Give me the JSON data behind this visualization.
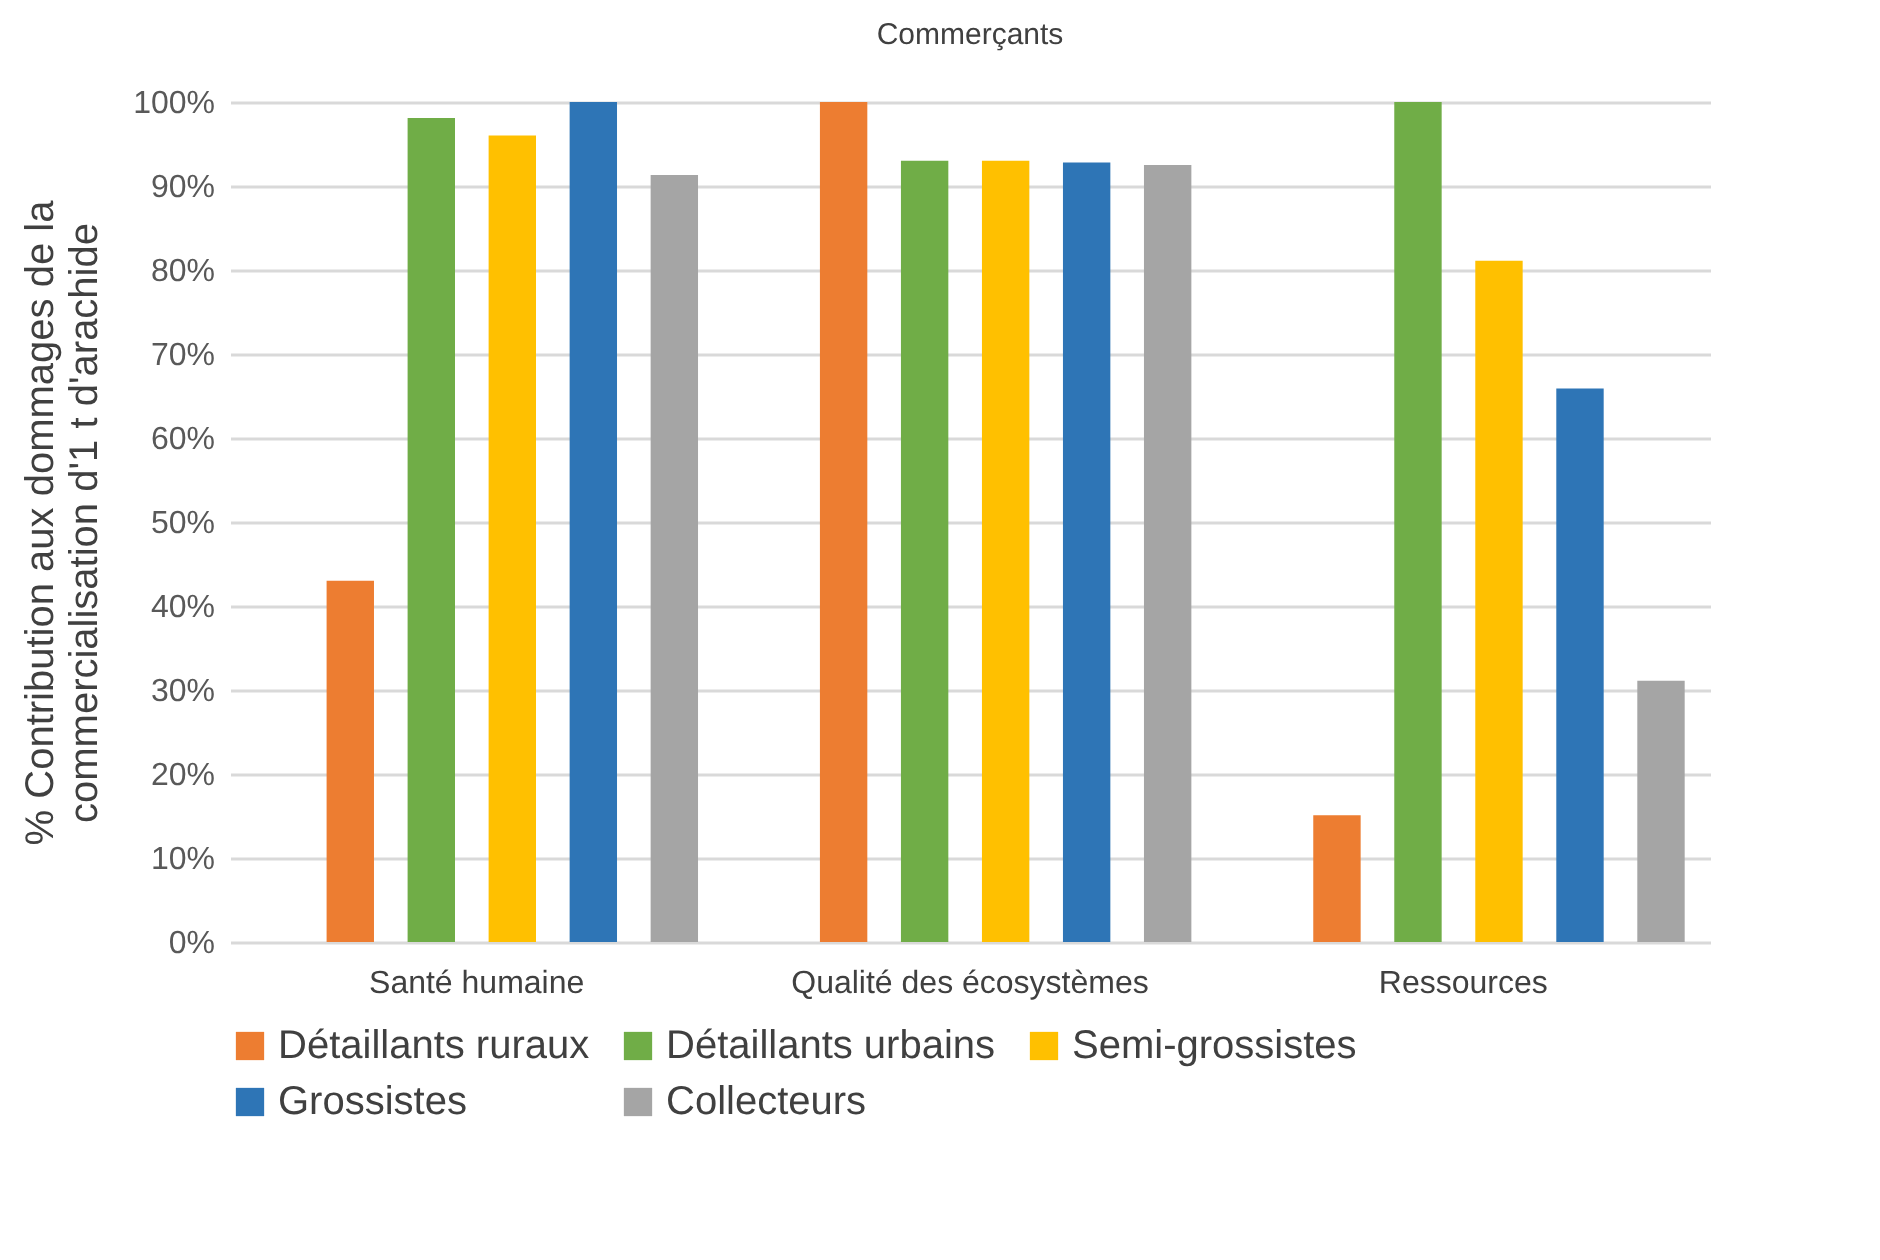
{
  "chart_data": {
    "type": "bar",
    "title": "Commerçants",
    "ylabel": "% Contribution aux dommages de la\ncommercialisation d'1 t d'arachide",
    "categories": [
      "Santé humaine",
      "Qualité des écosystèmes",
      "Ressources"
    ],
    "series": [
      {
        "name": "Détaillants ruraux",
        "color": "#ed7d31",
        "values": [
          43,
          100,
          15.1
        ]
      },
      {
        "name": "Détaillants urbains",
        "color": "#70ad47",
        "values": [
          98.1,
          93,
          100
        ]
      },
      {
        "name": "Semi-grossistes",
        "color": "#ffc000",
        "values": [
          96,
          93,
          81.1
        ]
      },
      {
        "name": "Grossistes",
        "color": "#2e75b6",
        "values": [
          100,
          92.8,
          65.9
        ]
      },
      {
        "name": "Collecteurs",
        "color": "#a5a5a5",
        "values": [
          91.3,
          92.5,
          31.1
        ]
      }
    ],
    "ylim": [
      0,
      100
    ],
    "yticks": [
      {
        "value": 0,
        "label": "0%"
      },
      {
        "value": 10,
        "label": "10%"
      },
      {
        "value": 20,
        "label": "20%"
      },
      {
        "value": 30,
        "label": "30%"
      },
      {
        "value": 40,
        "label": "40%"
      },
      {
        "value": 50,
        "label": "50%"
      },
      {
        "value": 60,
        "label": "60%"
      },
      {
        "value": 70,
        "label": "70%"
      },
      {
        "value": 80,
        "label": "80%"
      },
      {
        "value": 90,
        "label": "90%"
      },
      {
        "value": 100,
        "label": "100%"
      }
    ],
    "grid": "y",
    "legend": "bottom"
  }
}
